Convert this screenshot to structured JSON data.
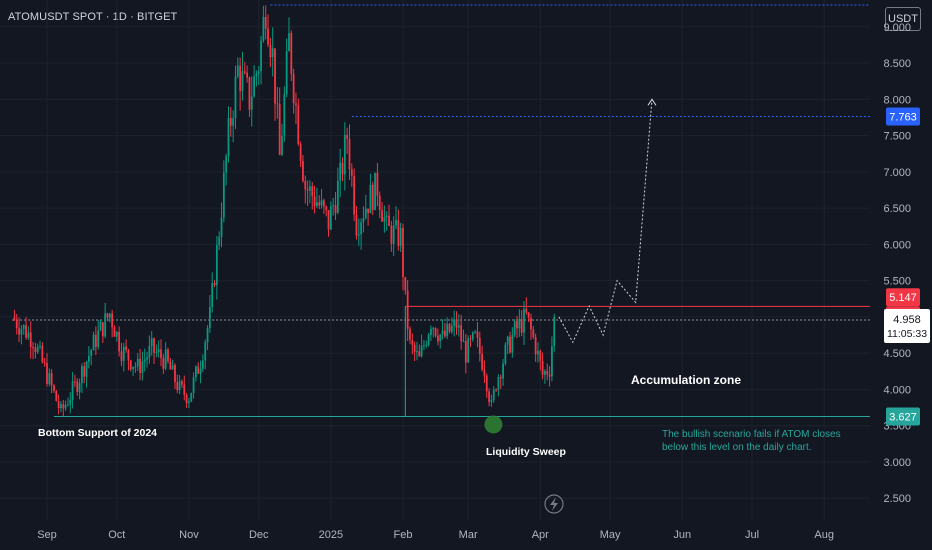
{
  "header": {
    "symbol_title": "ATOMUSDT SPOT · 1D · BITGET",
    "currency_button": "USDT"
  },
  "colors": {
    "background": "#131722",
    "up": "#089981",
    "down": "#f23645",
    "grid": "#1e222d",
    "axis_text": "#b2b5be",
    "resistance_line": "#f23645",
    "support_line": "#26a69a",
    "target_line": "#2962ff",
    "target_label_bg": "#2962ff",
    "accent_green": "#26a69a",
    "sweep_marker": "#2e7d32"
  },
  "chart_data": {
    "type": "candlestick",
    "symbol": "ATOMUSDT",
    "exchange": "BITGET",
    "timeframe": "1D",
    "y_axis": {
      "ylim": [
        2.2,
        9.3
      ],
      "tick_labels": [
        "9.000",
        "8.500",
        "8.000",
        "7.500",
        "7.000",
        "6.500",
        "6.000",
        "5.500",
        "5.000",
        "4.500",
        "4.000",
        "3.500",
        "3.000",
        "2.500"
      ],
      "tick_values": [
        9.0,
        8.5,
        8.0,
        7.5,
        7.0,
        6.5,
        6.0,
        5.5,
        5.0,
        4.5,
        4.0,
        3.5,
        3.0,
        2.5
      ]
    },
    "x_axis": {
      "start_date": "2024-08-17",
      "end_date": "2024-08-26",
      "labels": [
        {
          "text": "Sep",
          "date": "2024-09-01"
        },
        {
          "text": "Oct",
          "date": "2024-10-01"
        },
        {
          "text": "Nov",
          "date": "2024-11-01"
        },
        {
          "text": "Dec",
          "date": "2024-12-01"
        },
        {
          "text": "2025",
          "date": "2025-01-01"
        },
        {
          "text": "Feb",
          "date": "2025-02-01"
        },
        {
          "text": "Mar",
          "date": "2025-03-01"
        },
        {
          "text": "Apr",
          "date": "2025-04-01"
        },
        {
          "text": "May",
          "date": "2025-05-01"
        },
        {
          "text": "Jun",
          "date": "2025-06-01"
        },
        {
          "text": "Jul",
          "date": "2025-07-01"
        },
        {
          "text": "Aug",
          "date": "2025-08-01"
        }
      ]
    },
    "price_path": [
      {
        "date": "2024-08-17",
        "close": 5.0
      },
      {
        "date": "2024-08-26",
        "close": 4.7
      },
      {
        "date": "2024-09-01",
        "close": 4.2
      },
      {
        "date": "2024-09-07",
        "close": 3.68
      },
      {
        "date": "2024-09-14",
        "close": 4.1
      },
      {
        "date": "2024-09-22",
        "close": 4.7
      },
      {
        "date": "2024-09-28",
        "close": 5.05
      },
      {
        "date": "2024-10-03",
        "close": 4.55
      },
      {
        "date": "2024-10-10",
        "close": 4.3
      },
      {
        "date": "2024-10-16",
        "close": 4.55
      },
      {
        "date": "2024-10-22",
        "close": 4.4
      },
      {
        "date": "2024-10-28",
        "close": 4.0
      },
      {
        "date": "2024-11-01",
        "close": 3.9
      },
      {
        "date": "2024-11-06",
        "close": 4.4
      },
      {
        "date": "2024-11-10",
        "close": 5.0
      },
      {
        "date": "2024-11-14",
        "close": 6.2
      },
      {
        "date": "2024-11-18",
        "close": 7.5
      },
      {
        "date": "2024-11-22",
        "close": 8.4
      },
      {
        "date": "2024-11-27",
        "close": 8.0
      },
      {
        "date": "2024-12-01",
        "close": 8.5
      },
      {
        "date": "2024-12-04",
        "close": 9.3
      },
      {
        "date": "2024-12-07",
        "close": 8.6
      },
      {
        "date": "2024-12-10",
        "close": 7.2
      },
      {
        "date": "2024-12-14",
        "close": 8.8
      },
      {
        "date": "2024-12-18",
        "close": 7.6
      },
      {
        "date": "2024-12-21",
        "close": 6.8
      },
      {
        "date": "2024-12-26",
        "close": 6.6
      },
      {
        "date": "2024-12-31",
        "close": 6.3
      },
      {
        "date": "2025-01-05",
        "close": 6.9
      },
      {
        "date": "2025-01-08",
        "close": 7.5
      },
      {
        "date": "2025-01-12",
        "close": 6.3
      },
      {
        "date": "2025-01-17",
        "close": 6.6
      },
      {
        "date": "2025-01-21",
        "close": 6.8
      },
      {
        "date": "2025-01-25",
        "close": 6.2
      },
      {
        "date": "2025-01-31",
        "close": 6.1
      },
      {
        "date": "2025-02-02",
        "close": 5.2
      },
      {
        "date": "2025-02-04",
        "close": 4.6
      },
      {
        "date": "2025-02-08",
        "close": 4.4
      },
      {
        "date": "2025-02-13",
        "close": 4.95
      },
      {
        "date": "2025-02-18",
        "close": 4.7
      },
      {
        "date": "2025-02-24",
        "close": 4.9
      },
      {
        "date": "2025-02-28",
        "close": 4.5
      },
      {
        "date": "2025-03-04",
        "close": 4.7
      },
      {
        "date": "2025-03-08",
        "close": 4.3
      },
      {
        "date": "2025-03-11",
        "close": 3.75
      },
      {
        "date": "2025-03-13",
        "close": 4.1
      },
      {
        "date": "2025-03-17",
        "close": 4.5
      },
      {
        "date": "2025-03-21",
        "close": 4.8
      },
      {
        "date": "2025-03-26",
        "close": 5.0
      },
      {
        "date": "2025-03-30",
        "close": 4.6
      },
      {
        "date": "2025-04-02",
        "close": 4.2
      },
      {
        "date": "2025-04-05",
        "close": 4.3
      },
      {
        "date": "2025-04-07",
        "close": 4.958
      }
    ],
    "last_price": {
      "value": 4.958,
      "label": "4.958",
      "countdown": "11:05:33"
    },
    "price_labels": [
      {
        "value": 7.763,
        "text": "7.763",
        "role": "target"
      },
      {
        "value": 5.147,
        "text": "5.147",
        "role": "resistance-upper"
      },
      {
        "value": 5.145,
        "text": "5.145",
        "role": "resistance"
      },
      {
        "value": 3.627,
        "text": "3.627",
        "role": "support"
      }
    ],
    "horizontal_levels": [
      {
        "name": "top-level",
        "value": 9.3,
        "from": "2024-12-06",
        "style": "dotted",
        "color": "#2962ff"
      },
      {
        "name": "target-level",
        "value": 7.763,
        "from": "2025-01-10",
        "style": "dotted",
        "color": "#2962ff"
      },
      {
        "name": "last-price-line",
        "value": 4.958,
        "from": "2024-08-17",
        "style": "dotted",
        "color": "#9598a1"
      },
      {
        "name": "resistance-line",
        "value": 5.145,
        "from": "2025-02-02",
        "style": "solid",
        "color": "#f23645"
      },
      {
        "name": "support-line",
        "value": 3.627,
        "from": "2024-09-04",
        "style": "solid",
        "color": "#26a69a"
      }
    ],
    "projection_path": [
      {
        "date": "2025-04-09",
        "value": 5.0
      },
      {
        "date": "2025-04-15",
        "value": 4.65
      },
      {
        "date": "2025-04-22",
        "value": 5.15
      },
      {
        "date": "2025-04-28",
        "value": 4.75
      },
      {
        "date": "2025-05-04",
        "value": 5.5
      },
      {
        "date": "2025-05-12",
        "value": 5.2
      },
      {
        "date": "2025-05-19",
        "value": 8.0
      }
    ],
    "annotations": {
      "bottom_support": {
        "text": "Bottom Support of 2024"
      },
      "accumulation": {
        "text": "Accumulation zone"
      },
      "liquidity_sweep": {
        "text": "Liquidity Sweep",
        "date": "2025-03-11",
        "value": 3.627
      },
      "invalidation_line1": "The bullish scenario fails if ATOM closes",
      "invalidation_line2": "below this level on the daily chart."
    }
  }
}
